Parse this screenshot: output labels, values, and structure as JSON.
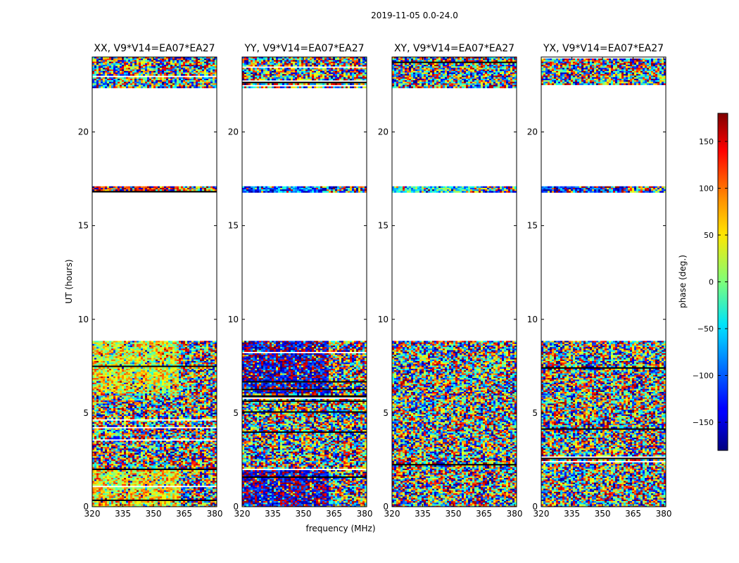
{
  "figure": {
    "suptitle": "2019-11-05 0.0-24.0",
    "xlabel": "frequency (MHz)",
    "ylabel": "UT (hours)",
    "colorbar_label": "phase (deg.)",
    "colorbar_ticklabels": [
      "150",
      "100",
      "50",
      "0",
      "−50",
      "−100",
      "−150"
    ],
    "colorbar_ticks": [
      150,
      100,
      50,
      0,
      -50,
      -100,
      -150
    ],
    "colorbar_range": [
      -180,
      180
    ],
    "colormap": "jet"
  },
  "chart_data": [
    {
      "type": "heatmap",
      "title": "XX, V9*V14=EA07*EA27",
      "xlabel": "frequency (MHz)",
      "ylabel": "UT (hours)",
      "xlim": [
        320,
        381
      ],
      "ylim": [
        0,
        24
      ],
      "xticks": [
        320,
        335,
        350,
        365,
        380
      ],
      "xticklabels": [
        "320",
        "335",
        "350",
        "365",
        "380"
      ],
      "yticks": [
        0,
        5,
        10,
        15,
        20
      ],
      "yticklabels": [
        "0",
        "5",
        "10",
        "15",
        "20"
      ],
      "data_time_ranges": [
        [
          0,
          6.0
        ],
        [
          6.0,
          8.85
        ],
        [
          16.8,
          17.1
        ],
        [
          22.4,
          24
        ]
      ],
      "band_dominant_phase": {
        "0.0-2.0": 50,
        "2.0-6.0": "mixed",
        "6.0-8.85": 40,
        "16.8-17.1": 150,
        "22.4-24": "mixed"
      }
    },
    {
      "type": "heatmap",
      "title": "YY, V9*V14=EA07*EA27",
      "xlim": [
        320,
        381
      ],
      "ylim": [
        0,
        24
      ],
      "xticks": [
        320,
        335,
        350,
        365,
        380
      ],
      "xticklabels": [
        "320",
        "335",
        "350",
        "365",
        "380"
      ],
      "yticks": [
        0,
        5,
        10,
        15,
        20
      ],
      "yticklabels": [
        "0",
        "5",
        "10",
        "15",
        "20"
      ],
      "data_time_ranges": [
        [
          0,
          6.0
        ],
        [
          6.0,
          8.85
        ],
        [
          16.8,
          17.1
        ],
        [
          22.4,
          24
        ]
      ],
      "band_dominant_phase": {
        "0.0-2.0": -155,
        "2.0-6.0": "mixed",
        "6.0-8.85": -150,
        "16.8-17.1": -100,
        "22.4-24": "mixed"
      }
    },
    {
      "type": "heatmap",
      "title": "XY, V9*V14=EA07*EA27",
      "xlim": [
        320,
        381
      ],
      "ylim": [
        0,
        24
      ],
      "xticks": [
        320,
        335,
        350,
        365,
        380
      ],
      "xticklabels": [
        "320",
        "335",
        "350",
        "365",
        "380"
      ],
      "yticks": [
        0,
        5,
        10,
        15,
        20
      ],
      "yticklabels": [
        "0",
        "5",
        "10",
        "15",
        "20"
      ],
      "data_time_ranges": [
        [
          0,
          6.0
        ],
        [
          6.0,
          8.85
        ],
        [
          16.8,
          17.1
        ],
        [
          22.4,
          24
        ]
      ],
      "band_dominant_phase": {
        "0.0-2.0": "mixed",
        "2.0-6.0": "mixed",
        "6.0-8.85": "mixed",
        "16.8-17.1": -40,
        "22.4-24": "mixed"
      }
    },
    {
      "type": "heatmap",
      "title": "YX, V9*V14=EA07*EA27",
      "xlim": [
        320,
        381
      ],
      "ylim": [
        0,
        24
      ],
      "xticks": [
        320,
        335,
        350,
        365,
        380
      ],
      "xticklabels": [
        "320",
        "335",
        "350",
        "365",
        "380"
      ],
      "yticks": [
        0,
        5,
        10,
        15,
        20
      ],
      "yticklabels": [
        "0",
        "5",
        "10",
        "15",
        "20"
      ],
      "data_time_ranges": [
        [
          0,
          6.0
        ],
        [
          6.0,
          8.85
        ],
        [
          16.8,
          17.1
        ],
        [
          22.4,
          24
        ]
      ],
      "band_dominant_phase": {
        "0.0-2.0": "mixed",
        "2.0-6.0": "mixed",
        "6.0-8.85": "mixed",
        "16.8-17.1": -130,
        "22.4-24": "mixed"
      }
    }
  ]
}
